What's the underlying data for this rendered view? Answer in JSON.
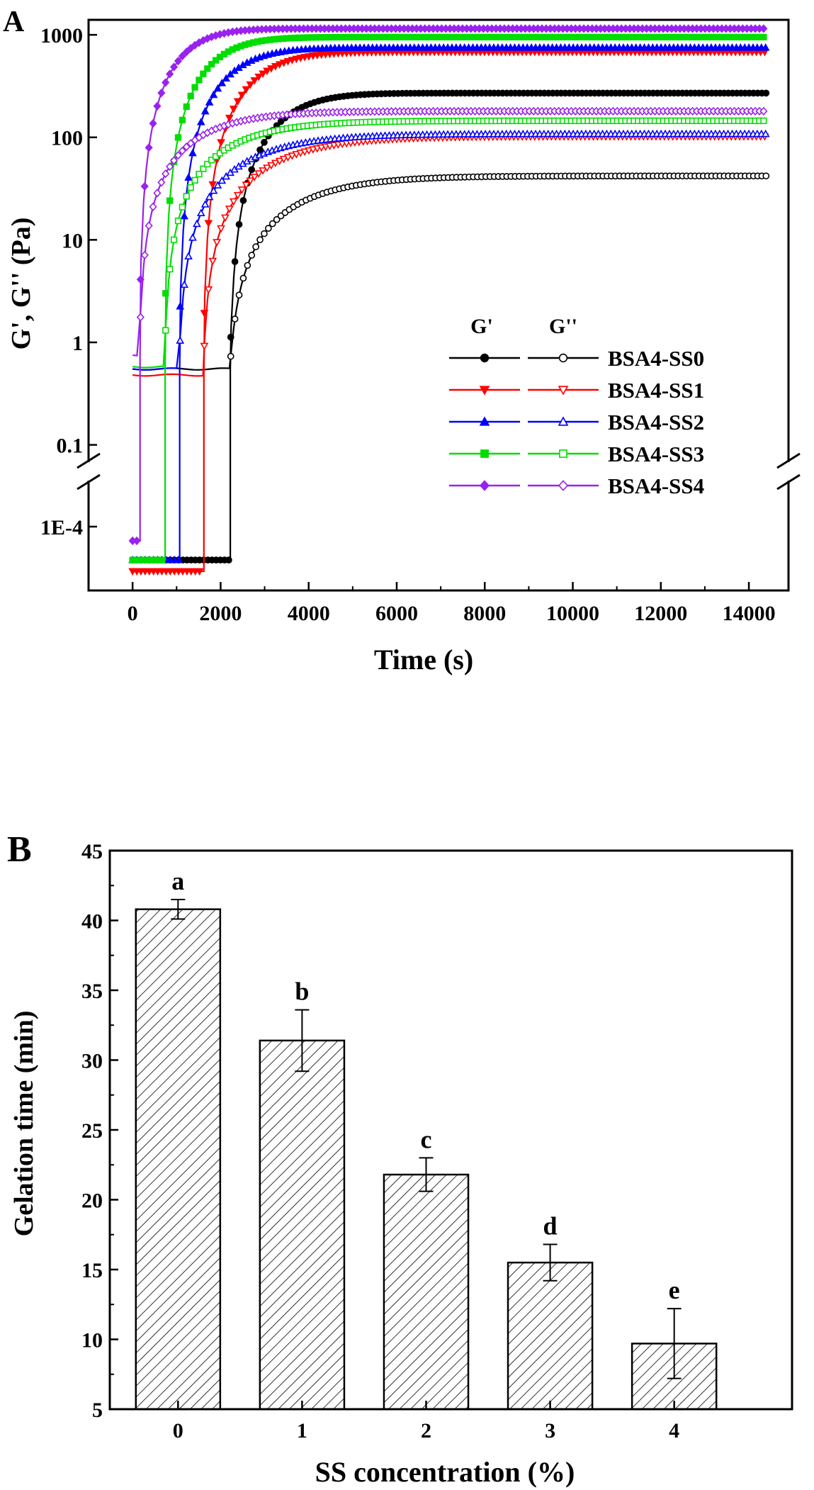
{
  "chart_data": [
    {
      "panel": "A",
      "type": "line",
      "xlabel": "Time (s)",
      "ylabel": "G', G'' (Pa)",
      "xlim": [
        -1000,
        14900
      ],
      "x_ticks": [
        0,
        2000,
        4000,
        6000,
        8000,
        10000,
        12000,
        14000
      ],
      "y_scale": "log",
      "y_axis_break": true,
      "ylim_upper": [
        0.07,
        1400
      ],
      "ylim_lower": [
        1e-05,
        0.0005
      ],
      "y_tick_labels_upper": [
        "1000",
        "100",
        "10",
        "1",
        "0.1"
      ],
      "y_tick_values_upper": [
        1000,
        100,
        10,
        1,
        0.1
      ],
      "y_tick_labels_lower": [
        "1E-4"
      ],
      "y_tick_values_lower": [
        0.0001
      ],
      "legend_header": [
        "G'",
        "G''"
      ],
      "legend_position": "center-right",
      "series": [
        {
          "name": "BSA4-SS0",
          "color": "#000000",
          "marker_storage": "circle-filled",
          "marker_loss": "circle-open",
          "onset_s": 2200,
          "gp_initial_low": 3e-05,
          "gp_initial": 0.55,
          "gpp_initial": 0.55,
          "gp_final": 270,
          "gpp_final": 42,
          "tau_s": 1400
        },
        {
          "name": "BSA4-SS1",
          "color": "#ff0000",
          "marker_storage": "triangle-down-filled",
          "marker_loss": "triangle-down-open",
          "onset_s": 1600,
          "gp_initial_low": 2e-05,
          "gp_initial": 0.48,
          "gpp_initial": 0.48,
          "gp_final": 680,
          "gpp_final": 102,
          "tau_s": 1400
        },
        {
          "name": "BSA4-SS2",
          "color": "#0000ff",
          "marker_storage": "triangle-up-filled",
          "marker_loss": "triangle-up-open",
          "onset_s": 1050,
          "gp_initial_low": 3e-05,
          "gp_initial": 0.55,
          "gpp_initial": 0.55,
          "gp_final": 750,
          "gpp_final": 108,
          "tau_s": 1350
        },
        {
          "name": "BSA4-SS3",
          "color": "#00dd00",
          "marker_storage": "square-filled",
          "marker_loss": "square-open",
          "onset_s": 720,
          "gp_initial_low": 3e-05,
          "gp_initial": 0.58,
          "gpp_initial": 0.58,
          "gp_final": 950,
          "gpp_final": 145,
          "tau_s": 1250
        },
        {
          "name": "BSA4-SS4",
          "color": "#9922ee",
          "marker_storage": "diamond-filled",
          "marker_loss": "diamond-open",
          "onset_s": 150,
          "gp_initial_low": 6e-05,
          "gp_initial": 0.75,
          "gpp_initial": 0.75,
          "gp_final": 1150,
          "gpp_final": 180,
          "tau_s": 1150
        }
      ]
    },
    {
      "panel": "B",
      "type": "bar",
      "xlabel": "SS concentration (%)",
      "ylabel": "Gelation time (min)",
      "categories": [
        "0",
        "1",
        "2",
        "3",
        "4"
      ],
      "values": [
        40.8,
        31.4,
        21.8,
        15.5,
        9.7
      ],
      "errors": [
        0.7,
        2.2,
        1.2,
        1.3,
        2.5
      ],
      "significance_letters": [
        "a",
        "b",
        "c",
        "d",
        "e"
      ],
      "ylim": [
        5,
        45
      ],
      "y_ticks": [
        5,
        10,
        15,
        20,
        25,
        30,
        35,
        40,
        45
      ],
      "bar_fill": "hatched"
    }
  ]
}
